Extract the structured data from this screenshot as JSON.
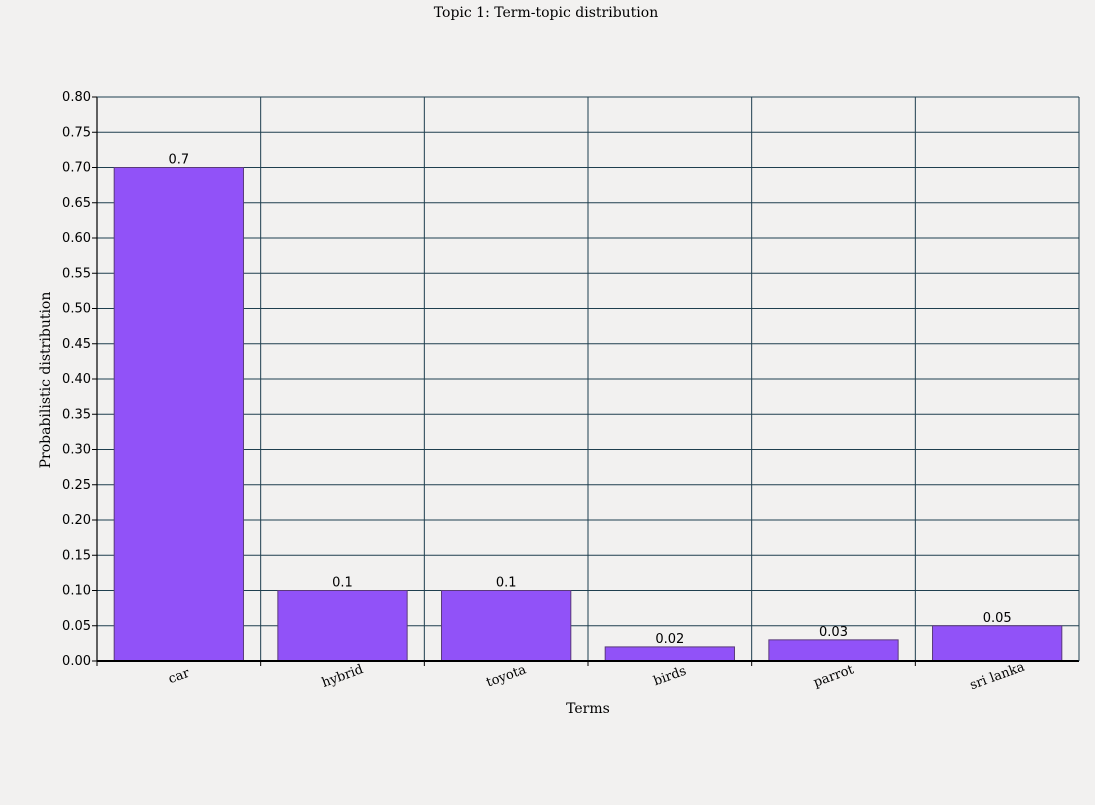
{
  "chart_data": {
    "type": "bar",
    "title": "Topic 1: Term-topic distribution",
    "xlabel": "Terms",
    "ylabel": "Probabilistic distribution",
    "categories": [
      "car",
      "hybrid",
      "toyota",
      "birds",
      "parrot",
      "sri lanka"
    ],
    "values": [
      0.7,
      0.1,
      0.1,
      0.02,
      0.03,
      0.05
    ],
    "data_labels": [
      "0.7",
      "0.1",
      "0.1",
      "0.02",
      "0.03",
      "0.05"
    ],
    "ylim": [
      0,
      0.8
    ],
    "yticks": [
      "0.00",
      "0.05",
      "0.10",
      "0.15",
      "0.20",
      "0.25",
      "0.30",
      "0.35",
      "0.40",
      "0.45",
      "0.50",
      "0.55",
      "0.60",
      "0.65",
      "0.70",
      "0.75",
      "0.80"
    ],
    "grid": true,
    "bar_color": "#9152f8",
    "grid_color": "#1f3f4f",
    "legend": "none"
  }
}
